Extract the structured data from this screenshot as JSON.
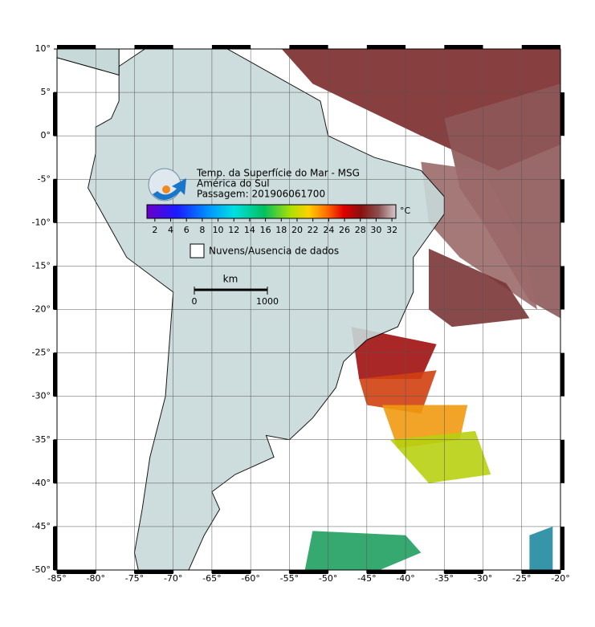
{
  "map": {
    "title_lines": [
      "Temp. da Superfície do Mar - MSG",
      "América do Sul",
      "Passagem: 201906061700"
    ],
    "colorbar": {
      "unit": "°C",
      "range": [
        1,
        32.5
      ],
      "ticks": [
        2,
        4,
        6,
        8,
        10,
        12,
        14,
        16,
        18,
        20,
        22,
        24,
        26,
        28,
        30,
        32
      ]
    },
    "legend": "Nuvens/Ausencia de dados",
    "scale_bar": {
      "unit": "km",
      "ticks": [
        0,
        1000
      ]
    },
    "xlim": [
      -85,
      -20
    ],
    "ylim": [
      -50,
      10
    ],
    "xticks": [
      {
        "value": -85,
        "label": "-85°"
      },
      {
        "value": -80,
        "label": "-80°"
      },
      {
        "value": -75,
        "label": "-75°"
      },
      {
        "value": -70,
        "label": "-70°"
      },
      {
        "value": -65,
        "label": "-65°"
      },
      {
        "value": -60,
        "label": "-60°"
      },
      {
        "value": -55,
        "label": "-55°"
      },
      {
        "value": -50,
        "label": "-50°"
      },
      {
        "value": -45,
        "label": "-45°"
      },
      {
        "value": -40,
        "label": "-40°"
      },
      {
        "value": -35,
        "label": "-35°"
      },
      {
        "value": -30,
        "label": "-30°"
      },
      {
        "value": -25,
        "label": "-25°"
      },
      {
        "value": -20,
        "label": "-20°"
      }
    ],
    "yticks": [
      {
        "value": 10,
        "label": "10°"
      },
      {
        "value": 5,
        "label": "5°"
      },
      {
        "value": 0,
        "label": "0°"
      },
      {
        "value": -5,
        "label": "-5°"
      },
      {
        "value": -10,
        "label": "-10°"
      },
      {
        "value": -15,
        "label": "-15°"
      },
      {
        "value": -20,
        "label": "-20°"
      },
      {
        "value": -25,
        "label": "-25°"
      },
      {
        "value": -30,
        "label": "-30°"
      },
      {
        "value": -35,
        "label": "-35°"
      },
      {
        "value": -40,
        "label": "-40°"
      },
      {
        "value": -45,
        "label": "-45°"
      },
      {
        "value": -50,
        "label": "-50°"
      }
    ]
  }
}
